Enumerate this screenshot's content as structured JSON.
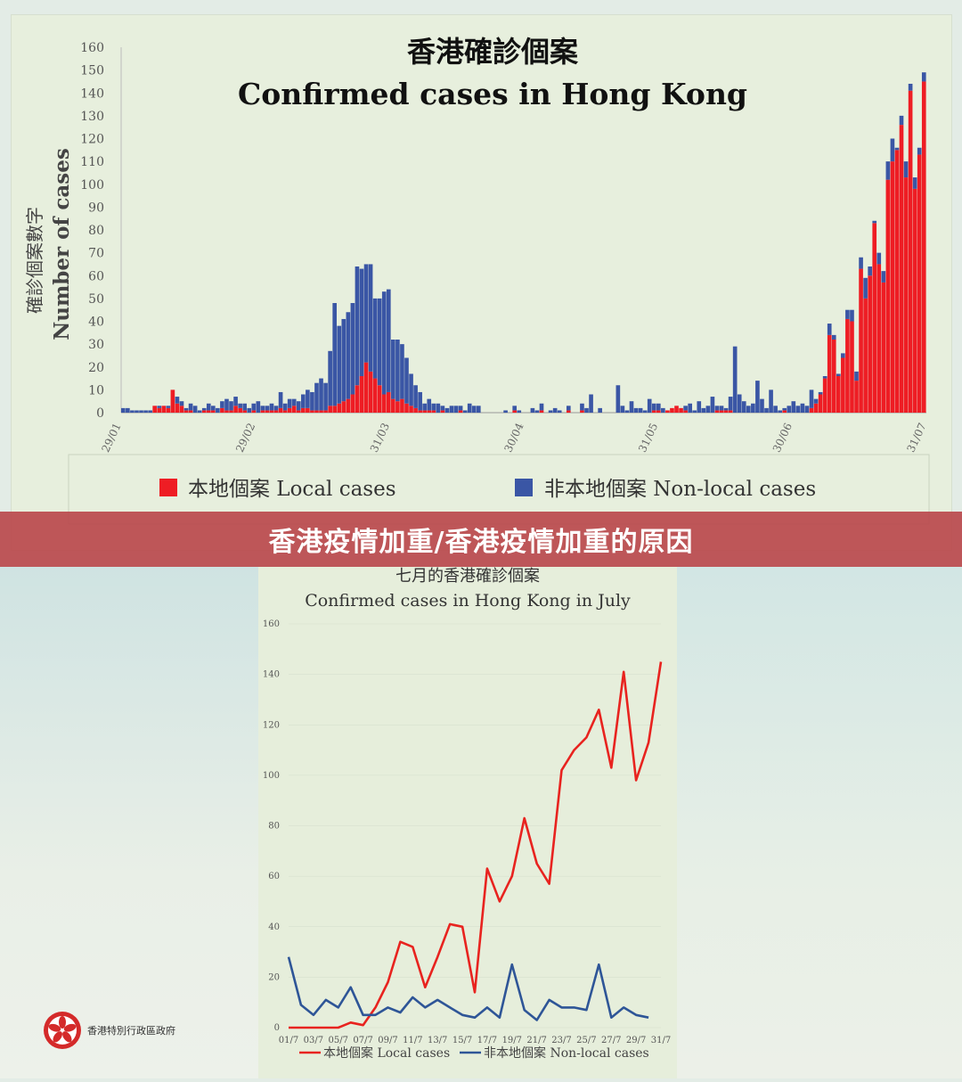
{
  "banner": {
    "text": "香港疫情加重/香港疫情加重的原因"
  },
  "emblem": {
    "text": "香港特別行政區政府"
  },
  "chart_data": [
    {
      "type": "bar",
      "stacked": true,
      "title_zh": "香港確診個案",
      "title": "Confirmed cases in Hong Kong",
      "ylabel_zh": "確診個案數字",
      "ylabel": "Number of cases",
      "ylim": [
        0,
        160
      ],
      "yticks": [
        0,
        10,
        20,
        30,
        40,
        50,
        60,
        70,
        80,
        90,
        100,
        110,
        120,
        130,
        140,
        150,
        160
      ],
      "xticks": [
        "29/01",
        "29/02",
        "31/03",
        "30/04",
        "31/05",
        "30/06",
        "31/07"
      ],
      "legend": {
        "local": "本地個案 Local cases",
        "nonlocal": "非本地個案 Non-local cases",
        "position": "bottom"
      },
      "colors": {
        "local": "#ee1d24",
        "nonlocal": "#3a56a5"
      },
      "series": [
        {
          "name": "本地個案 Local cases",
          "values": [
            0,
            0,
            0,
            0,
            0,
            0,
            0,
            3,
            2,
            3,
            2,
            10,
            4,
            3,
            1,
            1,
            0,
            0,
            1,
            1,
            1,
            0,
            2,
            1,
            1,
            3,
            2,
            1,
            0,
            1,
            0,
            1,
            1,
            1,
            1,
            2,
            1,
            2,
            3,
            1,
            2,
            2,
            1,
            1,
            1,
            1,
            3,
            3,
            4,
            5,
            6,
            8,
            12,
            16,
            22,
            18,
            15,
            12,
            8,
            9,
            6,
            5,
            6,
            4,
            3,
            2,
            1,
            1,
            1,
            1,
            0,
            1,
            0,
            0,
            0,
            1,
            0,
            0,
            0,
            0,
            0,
            0,
            0,
            0,
            0,
            0,
            0,
            1,
            0,
            0,
            0,
            0,
            0,
            1,
            0,
            0,
            0,
            0,
            0,
            1,
            0,
            0,
            1,
            0,
            0,
            0,
            0,
            0,
            0,
            0,
            0,
            0,
            0,
            0,
            0,
            0,
            0,
            0,
            1,
            1,
            0,
            1,
            2,
            3,
            2,
            1,
            0,
            0,
            0,
            0,
            0,
            0,
            1,
            1,
            1,
            1,
            0,
            0,
            0,
            0,
            0,
            0,
            0,
            0,
            0,
            0,
            0,
            1,
            0,
            0,
            0,
            0,
            0,
            2,
            4,
            8,
            15,
            34,
            32,
            16,
            24,
            41,
            40,
            14,
            63,
            50,
            60,
            83,
            65,
            57,
            102,
            110,
            115,
            126,
            103,
            141,
            98,
            113,
            145
          ]
        },
        {
          "name": "非本地個案 Non-local cases",
          "values": [
            2,
            2,
            1,
            1,
            1,
            1,
            1,
            0,
            1,
            0,
            1,
            0,
            3,
            2,
            1,
            3,
            3,
            1,
            1,
            3,
            2,
            2,
            3,
            5,
            4,
            4,
            2,
            3,
            2,
            3,
            5,
            2,
            2,
            3,
            2,
            7,
            3,
            4,
            3,
            4,
            6,
            8,
            8,
            12,
            14,
            12,
            24,
            45,
            34,
            36,
            38,
            40,
            52,
            47,
            43,
            47,
            35,
            38,
            45,
            45,
            26,
            27,
            24,
            20,
            14,
            10,
            8,
            3,
            5,
            3,
            4,
            2,
            2,
            3,
            3,
            2,
            1,
            4,
            3,
            3,
            0,
            0,
            0,
            0,
            0,
            1,
            0,
            2,
            1,
            0,
            0,
            2,
            1,
            3,
            0,
            1,
            2,
            1,
            0,
            2,
            0,
            0,
            3,
            2,
            8,
            0,
            2,
            0,
            0,
            0,
            12,
            3,
            1,
            5,
            2,
            2,
            1,
            6,
            3,
            3,
            2,
            0,
            0,
            0,
            0,
            2,
            4,
            1,
            5,
            2,
            3,
            7,
            2,
            2,
            1,
            6,
            29,
            8,
            5,
            3,
            4,
            14,
            6,
            2,
            10,
            3,
            1,
            1,
            3,
            5,
            3,
            4,
            3,
            8,
            2,
            1,
            1,
            5,
            2,
            1,
            2,
            4,
            5,
            4,
            5,
            9,
            4,
            1,
            5,
            5,
            8,
            10,
            1,
            4,
            7,
            3,
            5,
            3,
            4,
            6
          ]
        }
      ]
    },
    {
      "type": "line",
      "title_zh": "七月的香港確診個案",
      "title": "Confirmed cases in Hong Kong in July",
      "ylim": [
        0,
        160
      ],
      "yticks": [
        0,
        20,
        40,
        60,
        80,
        100,
        120,
        140,
        160
      ],
      "xticks": [
        "01/7",
        "03/7",
        "05/7",
        "07/7",
        "09/7",
        "11/7",
        "13/7",
        "15/7",
        "17/7",
        "19/7",
        "21/7",
        "23/7",
        "25/7",
        "27/7",
        "29/7",
        "31/7"
      ],
      "legend": {
        "local": "本地個案 Local cases",
        "nonlocal": "非本地個案 Non-local cases",
        "position": "bottom"
      },
      "colors": {
        "local": "#e8231f",
        "nonlocal": "#2e5597"
      },
      "series": [
        {
          "name": "本地個案 Local cases",
          "values": [
            0,
            0,
            0,
            0,
            0,
            2,
            1,
            8,
            18,
            34,
            32,
            16,
            28,
            41,
            40,
            14,
            63,
            50,
            60,
            83,
            65,
            57,
            102,
            110,
            115,
            126,
            103,
            141,
            98,
            113,
            145
          ]
        },
        {
          "name": "非本地個案 Non-local cases",
          "values": [
            28,
            9,
            5,
            11,
            8,
            16,
            5,
            5,
            8,
            6,
            12,
            8,
            11,
            8,
            5,
            4,
            8,
            4,
            25,
            7,
            3,
            11,
            8,
            8,
            7,
            25,
            4,
            8,
            5,
            4,
            null
          ]
        }
      ]
    }
  ]
}
